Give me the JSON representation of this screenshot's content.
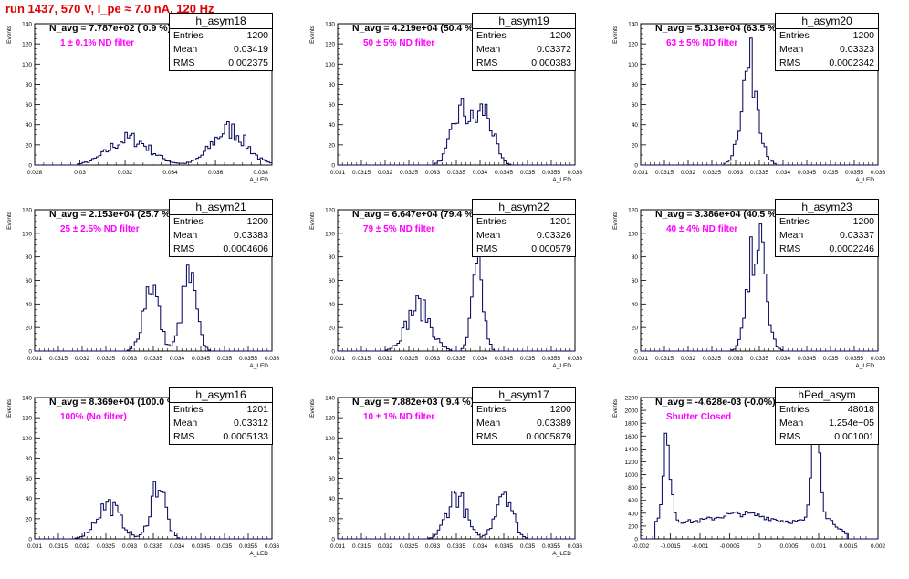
{
  "page_title": "run 1437,   570 V, I_pe ≈ 7.0 nA, 120 Hz",
  "colors": {
    "title": "#e00000",
    "histogram": "#00005a",
    "filter_label": "#ff00ff"
  },
  "chart_data": [
    {
      "type": "bar",
      "name": "h_asym18",
      "avg_label": "N_avg = 7.787e+02 ( 0.9 %)",
      "filter_label": "1 ± 0.1% ND filter",
      "stats": [
        {
          "label": "Entries",
          "value": "1200"
        },
        {
          "label": "Mean",
          "value": "0.03419"
        },
        {
          "label": "RMS",
          "value": "0.002375"
        }
      ],
      "ylabel": "Events",
      "xlabel": "A_LED",
      "xlim": [
        0.028,
        0.0385
      ],
      "ylim": [
        0,
        140
      ],
      "xticks": [
        "0.028",
        "0.03",
        "0.032",
        "0.034",
        "0.036",
        "0.038"
      ],
      "xticks_pos": [
        0.028,
        0.03,
        0.032,
        0.034,
        0.036,
        0.038
      ],
      "yticks": [
        0,
        20,
        40,
        60,
        80,
        100,
        120,
        140
      ],
      "peaks": [
        {
          "mu": 0.0322,
          "sigma": 0.0009,
          "h": 26
        },
        {
          "mu": 0.0366,
          "sigma": 0.00075,
          "h": 35
        }
      ]
    },
    {
      "type": "bar",
      "name": "h_asym19",
      "avg_label": "N_avg = 4.219e+04 (50.4 %)",
      "filter_label": "50 ± 5% ND filter",
      "stats": [
        {
          "label": "Entries",
          "value": "1200"
        },
        {
          "label": "Mean",
          "value": "0.03372"
        },
        {
          "label": "RMS",
          "value": "0.000383"
        }
      ],
      "ylabel": "Events",
      "xlabel": "A_LED",
      "xlim": [
        0.031,
        0.036
      ],
      "ylim": [
        0,
        140
      ],
      "xticks": [
        "0.031",
        "0.0315",
        "0.032",
        "0.0325",
        "0.033",
        "0.0335",
        "0.034",
        "0.0345",
        "0.035",
        "0.0355",
        "0.036"
      ],
      "xticks_pos": [
        0.031,
        0.0315,
        0.032,
        0.0325,
        0.033,
        0.0335,
        0.034,
        0.0345,
        0.035,
        0.0355,
        0.036
      ],
      "yticks": [
        0,
        20,
        40,
        60,
        80,
        100,
        120,
        140
      ],
      "peaks": [
        {
          "mu": 0.0336,
          "sigma": 0.0002,
          "h": 52
        },
        {
          "mu": 0.0341,
          "sigma": 0.00018,
          "h": 52
        }
      ]
    },
    {
      "type": "bar",
      "name": "h_asym20",
      "avg_label": "N_avg = 5.313e+04 (63.5 %)",
      "filter_label": "63 ± 5% ND filter",
      "stats": [
        {
          "label": "Entries",
          "value": "1200"
        },
        {
          "label": "Mean",
          "value": "0.03323"
        },
        {
          "label": "RMS",
          "value": "0.0002342"
        }
      ],
      "ylabel": "Events",
      "xlabel": "A_LED",
      "xlim": [
        0.031,
        0.036
      ],
      "ylim": [
        0,
        140
      ],
      "xticks": [
        "0.031",
        "0.0315",
        "0.032",
        "0.0325",
        "0.033",
        "0.0335",
        "0.034",
        "0.0345",
        "0.035",
        "0.0355",
        "0.036"
      ],
      "xticks_pos": [
        0.031,
        0.0315,
        0.032,
        0.0325,
        0.033,
        0.0335,
        0.034,
        0.0345,
        0.035,
        0.0355,
        0.036
      ],
      "yticks": [
        0,
        20,
        40,
        60,
        80,
        100,
        120,
        140
      ],
      "peaks": [
        {
          "mu": 0.0333,
          "sigma": 0.00018,
          "h": 98
        }
      ]
    },
    {
      "type": "bar",
      "name": "h_asym21",
      "avg_label": "N_avg = 2.153e+04 (25.7 %)",
      "filter_label": "25 ± 2.5% ND filter",
      "stats": [
        {
          "label": "Entries",
          "value": "1200"
        },
        {
          "label": "Mean",
          "value": "0.03383"
        },
        {
          "label": "RMS",
          "value": "0.0004606"
        }
      ],
      "ylabel": "Events",
      "xlabel": "A_LED",
      "xlim": [
        0.031,
        0.036
      ],
      "ylim": [
        0,
        120
      ],
      "xticks": [
        "0.031",
        "0.0315",
        "0.032",
        "0.0325",
        "0.033",
        "0.0335",
        "0.034",
        "0.0345",
        "0.035",
        "0.0355",
        "0.036"
      ],
      "xticks_pos": [
        0.031,
        0.0315,
        0.032,
        0.0325,
        0.033,
        0.0335,
        0.034,
        0.0345,
        0.035,
        0.0355,
        0.036
      ],
      "yticks": [
        0,
        20,
        40,
        60,
        80,
        100,
        120
      ],
      "peaks": [
        {
          "mu": 0.03345,
          "sigma": 0.00016,
          "h": 58
        },
        {
          "mu": 0.03425,
          "sigma": 0.00015,
          "h": 62
        }
      ]
    },
    {
      "type": "bar",
      "name": "h_asym22",
      "avg_label": "N_avg = 6.647e+04 (79.4 %)",
      "filter_label": "79 ± 5% ND filter",
      "stats": [
        {
          "label": "Entries",
          "value": "1201"
        },
        {
          "label": "Mean",
          "value": "0.03326"
        },
        {
          "label": "RMS",
          "value": "0.000579"
        }
      ],
      "ylabel": "Events",
      "xlabel": "A_LED",
      "xlim": [
        0.031,
        0.036
      ],
      "ylim": [
        0,
        120
      ],
      "xticks": [
        "0.031",
        "0.0315",
        "0.032",
        "0.0325",
        "0.033",
        "0.0335",
        "0.034",
        "0.0345",
        "0.035",
        "0.0355",
        "0.036"
      ],
      "xticks_pos": [
        0.031,
        0.0315,
        0.032,
        0.0325,
        0.033,
        0.0335,
        0.034,
        0.0345,
        0.035,
        0.0355,
        0.036
      ],
      "yticks": [
        0,
        20,
        40,
        60,
        80,
        100,
        120
      ],
      "peaks": [
        {
          "mu": 0.0327,
          "sigma": 0.00025,
          "h": 38
        },
        {
          "mu": 0.03395,
          "sigma": 0.00012,
          "h": 66
        }
      ]
    },
    {
      "type": "bar",
      "name": "h_asym23",
      "avg_label": "N_avg = 3.386e+04 (40.5 %)",
      "filter_label": "40 ± 4% ND filter",
      "stats": [
        {
          "label": "Entries",
          "value": "1200"
        },
        {
          "label": "Mean",
          "value": "0.03337"
        },
        {
          "label": "RMS",
          "value": "0.0002246"
        }
      ],
      "ylabel": "Events",
      "xlabel": "A_LED",
      "xlim": [
        0.031,
        0.036
      ],
      "ylim": [
        0,
        120
      ],
      "xticks": [
        "0.031",
        "0.0315",
        "0.032",
        "0.0325",
        "0.033",
        "0.0335",
        "0.034",
        "0.0345",
        "0.035",
        "0.0355",
        "0.036"
      ],
      "xticks_pos": [
        0.031,
        0.0315,
        0.032,
        0.0325,
        0.033,
        0.0335,
        0.034,
        0.0345,
        0.035,
        0.0355,
        0.036
      ],
      "yticks": [
        0,
        20,
        40,
        60,
        80,
        100,
        120
      ],
      "peaks": [
        {
          "mu": 0.03345,
          "sigma": 0.00017,
          "h": 98
        }
      ]
    },
    {
      "type": "bar",
      "name": "h_asym16",
      "avg_label": "N_avg = 8.369e+04 (100.0 %)",
      "filter_label": "100% (No filter)",
      "stats": [
        {
          "label": "Entries",
          "value": "1201"
        },
        {
          "label": "Mean",
          "value": "0.03312"
        },
        {
          "label": "RMS",
          "value": "0.0005133"
        }
      ],
      "ylabel": "Events",
      "xlabel": "A_LED",
      "xlim": [
        0.031,
        0.036
      ],
      "ylim": [
        0,
        140
      ],
      "xticks": [
        "0.031",
        "0.0315",
        "0.032",
        "0.0325",
        "0.033",
        "0.0335",
        "0.034",
        "0.0345",
        "0.035",
        "0.0355",
        "0.036"
      ],
      "xticks_pos": [
        0.031,
        0.0315,
        0.032,
        0.0325,
        0.033,
        0.0335,
        0.034,
        0.0345,
        0.035,
        0.0355,
        0.036
      ],
      "yticks": [
        0,
        20,
        40,
        60,
        80,
        100,
        120,
        140
      ],
      "peaks": [
        {
          "mu": 0.03255,
          "sigma": 0.00025,
          "h": 34
        },
        {
          "mu": 0.0336,
          "sigma": 0.00015,
          "h": 56
        }
      ]
    },
    {
      "type": "bar",
      "name": "h_asym17",
      "avg_label": "N_avg = 7.882e+03 ( 9.4 %)",
      "filter_label": "10 ± 1% ND filter",
      "stats": [
        {
          "label": "Entries",
          "value": "1200"
        },
        {
          "label": "Mean",
          "value": "0.03389"
        },
        {
          "label": "RMS",
          "value": "0.0005879"
        }
      ],
      "ylabel": "Events",
      "xlabel": "A_LED",
      "xlim": [
        0.031,
        0.036
      ],
      "ylim": [
        0,
        140
      ],
      "xticks": [
        "0.031",
        "0.0315",
        "0.032",
        "0.0325",
        "0.033",
        "0.0335",
        "0.034",
        "0.0345",
        "0.035",
        "0.0355",
        "0.036"
      ],
      "xticks_pos": [
        0.031,
        0.0315,
        0.032,
        0.0325,
        0.033,
        0.0335,
        0.034,
        0.0345,
        0.035,
        0.0355,
        0.036
      ],
      "yticks": [
        0,
        20,
        40,
        60,
        80,
        100,
        120,
        140
      ],
      "peaks": [
        {
          "mu": 0.0335,
          "sigma": 0.0002,
          "h": 44
        },
        {
          "mu": 0.0345,
          "sigma": 0.00017,
          "h": 50
        }
      ]
    },
    {
      "type": "bar",
      "name": "hPed_asym",
      "avg_label": "N_avg = -4.628e-03 (-0.0%)",
      "filter_label": "Shutter Closed",
      "stats": [
        {
          "label": "Entries",
          "value": "48018"
        },
        {
          "label": "Mean",
          "value": "1.254e−05"
        },
        {
          "label": "RMS",
          "value": "0.001001"
        }
      ],
      "ylabel": "Events",
      "xlabel": "",
      "xlim": [
        -0.002,
        0.002
      ],
      "ylim": [
        0,
        2200
      ],
      "xticks": [
        "-0.002",
        "-0.0015",
        "-0.001",
        "-0.0005",
        "0",
        "0.0005",
        "0.001",
        "0.0015",
        "0.002"
      ],
      "xticks_pos": [
        -0.002,
        -0.0015,
        -0.001,
        -0.0005,
        0,
        0.0005,
        0.001,
        0.0015,
        0.002
      ],
      "yticks": [
        0,
        200,
        400,
        600,
        800,
        1000,
        1200,
        1400,
        1600,
        1800,
        2000,
        2200
      ],
      "ped": true
    }
  ]
}
